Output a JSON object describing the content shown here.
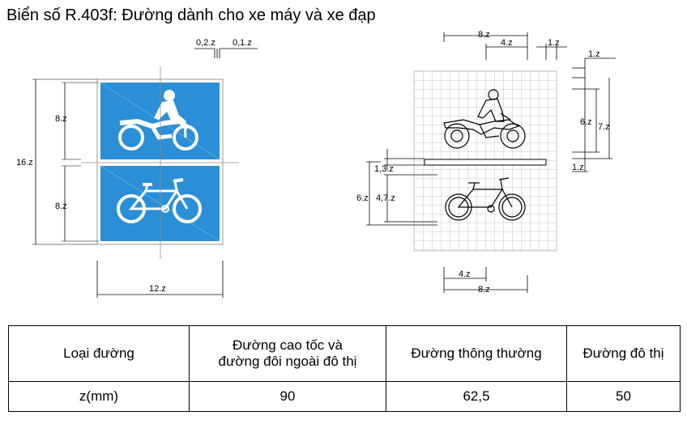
{
  "title": "Biển số R.403f: Đường dành cho xe máy và xe đạp",
  "sign_colors": {
    "background": "#2a8fd6",
    "border": "#ffffff",
    "symbol": "#ffffff"
  },
  "left_dims": {
    "top_a": "0,2.z",
    "top_b": "0,1.z",
    "total_height": "16.z",
    "upper_half": "8.z",
    "lower_half": "8.z",
    "width": "12.z"
  },
  "right_dims": {
    "top_width": "8.z",
    "top_half": "4.z",
    "top_gap": "1.z",
    "side_top": "1.z",
    "side_inner": "6.z",
    "side_outer": "7.z",
    "side_bottom": "1.z",
    "bar_gap": "1,3.z",
    "lower_outer": "6.z",
    "lower_inner": "4,7.z",
    "bottom_half": "4.z",
    "bottom_width": "8.z"
  },
  "table": {
    "headers": [
      "Loại đường",
      "Đường cao tốc và\nđường đôi ngoài đô thị",
      "Đường thông thường",
      "Đường đô thị"
    ],
    "row": [
      "z(mm)",
      "90",
      "62,5",
      "50"
    ]
  }
}
